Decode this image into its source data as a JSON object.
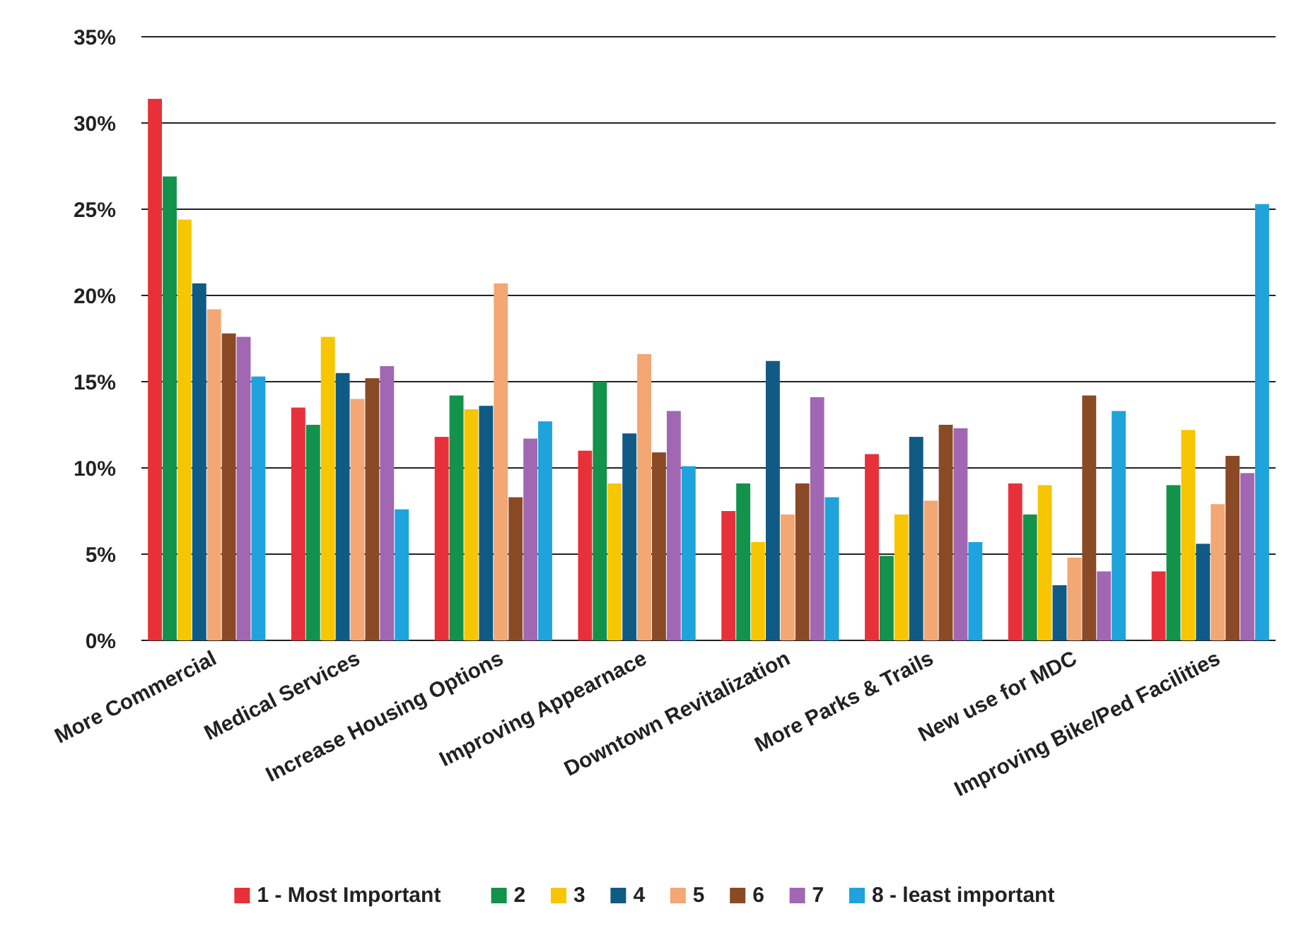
{
  "chart_data": {
    "type": "bar",
    "categories": [
      "More Commercial",
      "Medical Services",
      "Increase Housing Options",
      "Improving Appearnace",
      "Downtown Revitalization",
      "More Parks & Trails",
      "New use for MDC",
      "Improving Bike/Ped Facilities"
    ],
    "series": [
      {
        "name": "1 - Most Important",
        "color": "#e8303a",
        "values": [
          31.4,
          13.5,
          11.8,
          11.0,
          7.5,
          10.8,
          9.1,
          4.0
        ]
      },
      {
        "name": "2",
        "color": "#12924a",
        "values": [
          26.9,
          12.5,
          14.2,
          15.0,
          9.1,
          4.9,
          7.3,
          9.0
        ]
      },
      {
        "name": "3",
        "color": "#f7c600",
        "values": [
          24.4,
          17.6,
          13.4,
          9.1,
          5.7,
          7.3,
          9.0,
          12.2
        ]
      },
      {
        "name": "4",
        "color": "#0f5b85",
        "values": [
          20.7,
          15.5,
          13.6,
          12.0,
          16.2,
          11.8,
          3.2,
          5.6
        ]
      },
      {
        "name": "5",
        "color": "#f2a774",
        "values": [
          19.2,
          14.0,
          20.7,
          16.6,
          7.3,
          8.1,
          4.8,
          7.9
        ]
      },
      {
        "name": "6",
        "color": "#8a4a26",
        "values": [
          17.8,
          15.2,
          8.3,
          10.9,
          9.1,
          12.5,
          14.2,
          10.7
        ]
      },
      {
        "name": "7",
        "color": "#a167b3",
        "values": [
          17.6,
          15.9,
          11.7,
          13.3,
          14.1,
          12.3,
          4.0,
          9.7
        ]
      },
      {
        "name": "8 - least important",
        "color": "#1ea3dc",
        "values": [
          15.3,
          7.6,
          12.7,
          10.1,
          8.3,
          5.7,
          13.3,
          25.3
        ]
      }
    ],
    "ylim": [
      0,
      35
    ],
    "yticks": [
      {
        "value": 0,
        "label": "0%"
      },
      {
        "value": 5,
        "label": "5%"
      },
      {
        "value": 10,
        "label": "10%"
      },
      {
        "value": 15,
        "label": "15%"
      },
      {
        "value": 20,
        "label": "20%"
      },
      {
        "value": 25,
        "label": "25%"
      },
      {
        "value": 30,
        "label": "30%"
      },
      {
        "value": 35,
        "label": "35%"
      }
    ],
    "grid": "y",
    "legend": "bottom"
  }
}
